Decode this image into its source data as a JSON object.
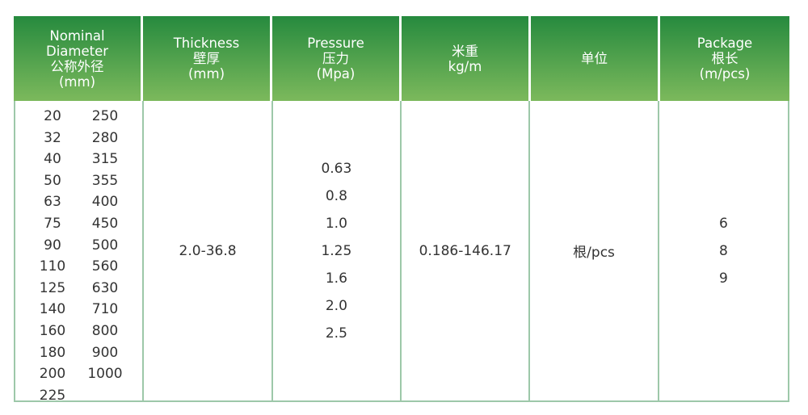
{
  "header": [
    {
      "lines": [
        "Nominal",
        "Diameter",
        "公称外径",
        "(mm)"
      ]
    },
    {
      "lines": [
        "Thickness",
        "壁厚",
        "(mm)"
      ]
    },
    {
      "lines": [
        "Pressure",
        "压力",
        "(Mpa)"
      ]
    },
    {
      "lines": [
        "米重",
        "kg/m"
      ]
    },
    {
      "lines": [
        "单位"
      ]
    },
    {
      "lines": [
        "Package",
        "根长",
        "(m/pcs)"
      ]
    }
  ],
  "diameters_left": [
    "20",
    "32",
    "40",
    "50",
    "63",
    "75",
    "90",
    "110",
    "125",
    "140",
    "160",
    "180",
    "200",
    "225"
  ],
  "diameters_right": [
    "250",
    "280",
    "315",
    "355",
    "400",
    "450",
    "500",
    "560",
    "630",
    "710",
    "800",
    "900",
    "1000"
  ],
  "thickness": "2.0-36.8",
  "pressures": [
    "0.63",
    "0.8",
    "1.0",
    "1.25",
    "1.6",
    "2.0",
    "2.5"
  ],
  "weight": "0.186-146.17",
  "unit": "根/pcs",
  "packages": [
    "6",
    "8",
    "9"
  ],
  "colors": {
    "header_top": "#268a3e",
    "header_bottom": "#7cb95c",
    "border": "#9dc8a9"
  }
}
